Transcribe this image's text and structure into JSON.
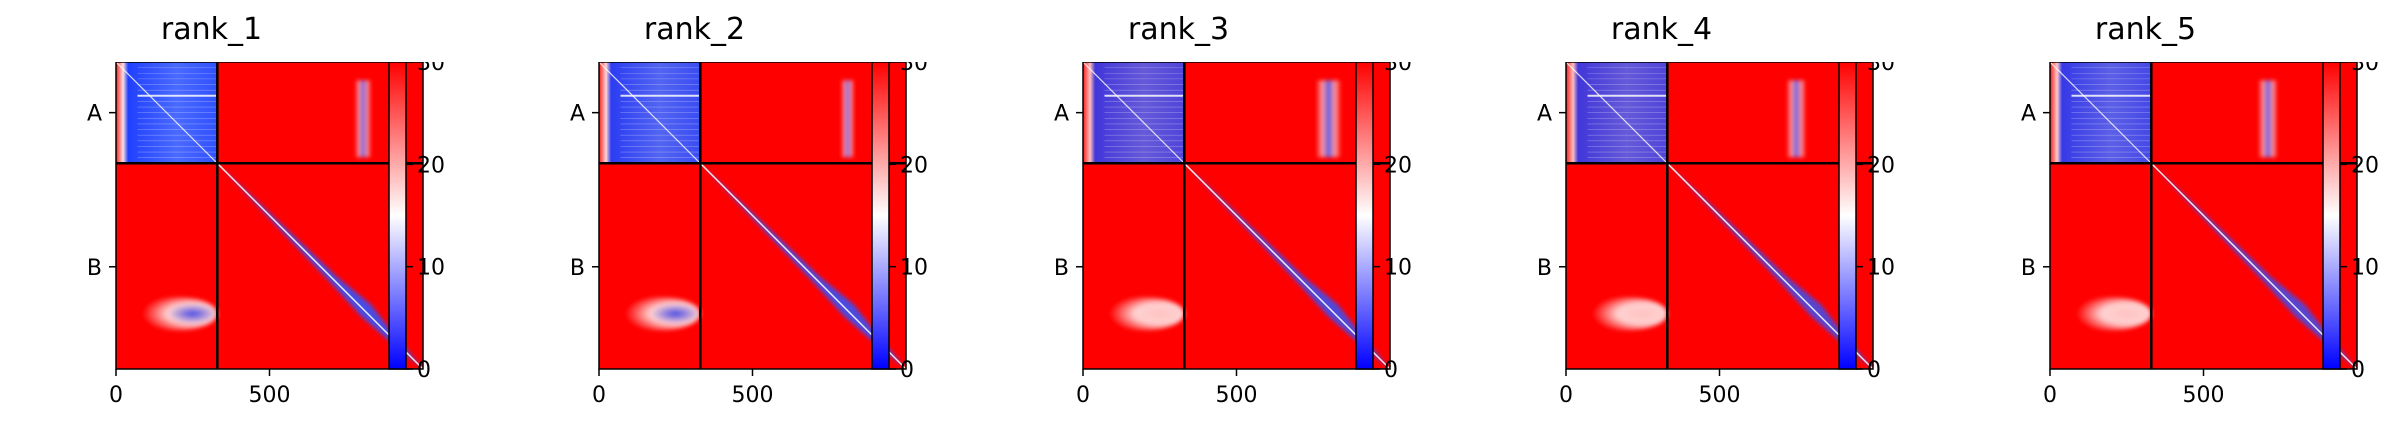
{
  "chart_data": {
    "type": "heatmap",
    "colormap": {
      "name": "bwr",
      "min_color": "#0000ff",
      "mid_color": "#ffffff",
      "max_color": "#ff0000"
    },
    "colorbar": {
      "range": [
        0,
        30
      ],
      "ticks": [
        "0",
        "10",
        "20",
        "30"
      ]
    },
    "x_ticks": [
      {
        "value": 0,
        "label": "0"
      },
      {
        "value": 500,
        "label": "500"
      }
    ],
    "x_range": [
      0,
      1000
    ],
    "y_ticks": [
      {
        "value": 165,
        "label": "A"
      },
      {
        "value": 667,
        "label": "B"
      }
    ],
    "chain_boundary": 330,
    "panels": [
      {
        "title": "rank_1",
        "a_block_strength": 0.85,
        "ab_stripe": [
          780,
          830
        ],
        "ba_feature": [
          60,
          330
        ],
        "diag_width": 1.0
      },
      {
        "title": "rank_2",
        "a_block_strength": 0.8,
        "ab_stripe": [
          790,
          830
        ],
        "ba_feature": [
          60,
          330
        ],
        "diag_width": 0.95
      },
      {
        "title": "rank_3",
        "a_block_strength": 0.7,
        "ab_stripe": [
          760,
          840
        ],
        "ba_feature": [
          60,
          330
        ],
        "diag_width": 0.85
      },
      {
        "title": "rank_4",
        "a_block_strength": 0.7,
        "ab_stripe": [
          720,
          780
        ],
        "ba_feature": [
          60,
          330
        ],
        "diag_width": 0.75
      },
      {
        "title": "rank_5",
        "a_block_strength": 0.75,
        "ab_stripe": [
          680,
          740
        ],
        "ba_feature": [
          60,
          330
        ],
        "diag_width": 0.7
      }
    ]
  }
}
